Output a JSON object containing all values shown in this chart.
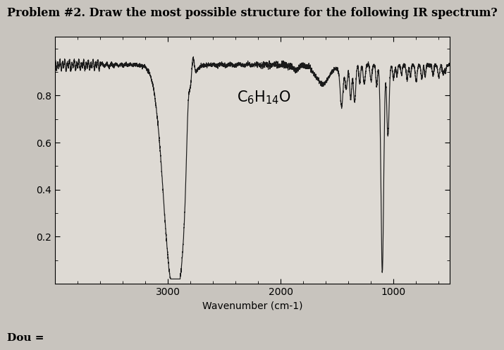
{
  "title": "Problem #2. Draw the most possible structure for the following IR spectrum?",
  "xlabel": "Wavenumber (cm-1)",
  "xlim": [
    4000,
    500
  ],
  "ylim": [
    0.0,
    1.05
  ],
  "yticks": [
    0.2,
    0.4,
    0.6,
    0.8
  ],
  "xticks": [
    3000,
    2000,
    1000
  ],
  "footer_label": "Dou =",
  "background_color": "#c8c4be",
  "plot_bg_color": "#dedad4",
  "line_color": "#1a1a1a",
  "title_fontsize": 11.5,
  "label_fontsize": 10,
  "tick_fontsize": 10
}
